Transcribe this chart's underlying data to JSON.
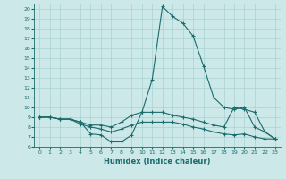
{
  "xlabel": "Humidex (Indice chaleur)",
  "bg_color": "#cce8e8",
  "line_color": "#1a6b6b",
  "grid_color": "#aad0d0",
  "xlim": [
    -0.5,
    23.5
  ],
  "ylim": [
    6,
    20.5
  ],
  "yticks": [
    6,
    7,
    8,
    9,
    10,
    11,
    12,
    13,
    14,
    15,
    16,
    17,
    18,
    19,
    20
  ],
  "xticks": [
    0,
    1,
    2,
    3,
    4,
    5,
    6,
    7,
    8,
    9,
    10,
    11,
    12,
    13,
    14,
    15,
    16,
    17,
    18,
    19,
    20,
    21,
    22,
    23
  ],
  "series": [
    [
      9.0,
      9.0,
      8.8,
      8.8,
      8.5,
      7.3,
      7.2,
      6.5,
      6.5,
      7.2,
      9.5,
      12.8,
      20.2,
      19.2,
      18.5,
      17.2,
      14.2,
      11.0,
      10.0,
      9.8,
      10.0,
      8.0,
      7.5,
      6.8
    ],
    [
      9.0,
      9.0,
      8.8,
      8.8,
      8.5,
      8.2,
      8.2,
      8.0,
      8.5,
      9.2,
      9.5,
      9.5,
      9.5,
      9.2,
      9.0,
      8.8,
      8.5,
      8.2,
      8.0,
      10.0,
      9.8,
      9.5,
      7.5,
      6.8
    ],
    [
      9.0,
      9.0,
      8.8,
      8.8,
      8.3,
      8.0,
      7.8,
      7.5,
      7.8,
      8.2,
      8.5,
      8.5,
      8.5,
      8.5,
      8.3,
      8.0,
      7.8,
      7.5,
      7.3,
      7.2,
      7.3,
      7.0,
      6.8,
      6.8
    ]
  ]
}
